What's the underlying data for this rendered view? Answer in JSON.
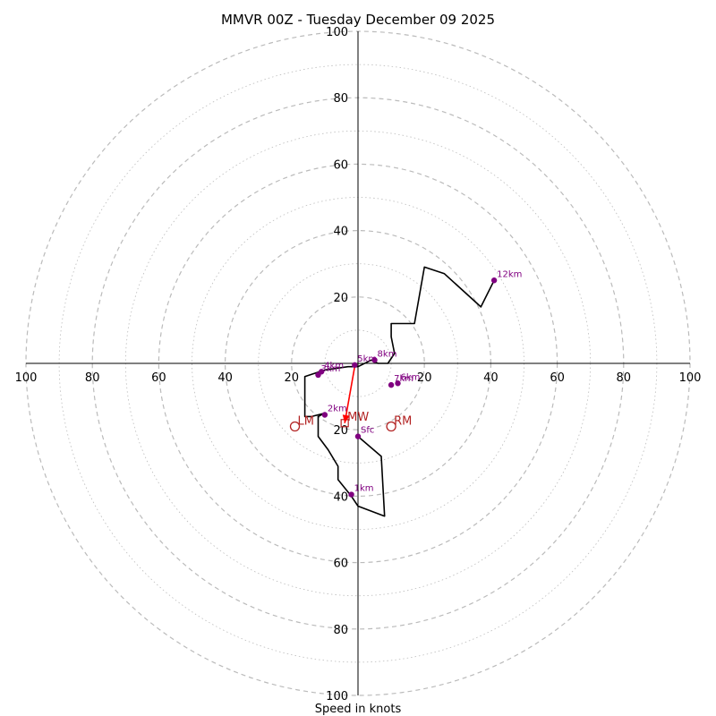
{
  "chart_data": {
    "type": "hodograph",
    "title": "MMVR 00Z - Tuesday December 09 2025",
    "xlabel": "Speed in knots",
    "range": [
      -100,
      100
    ],
    "ring_major_step": 20,
    "ring_minor_step": 10,
    "tick_values": [
      20,
      40,
      60,
      80,
      100
    ],
    "colors": {
      "grid": "#bbbbbb",
      "trace": "#000000",
      "height_marker": "#800080",
      "motion": "#b22222",
      "shear_vector": "#ff0000"
    },
    "trace": [
      [
        0,
        -22
      ],
      [
        7,
        -28
      ],
      [
        8,
        -46
      ],
      [
        0,
        -43
      ],
      [
        -2,
        -40
      ],
      [
        -6,
        -35
      ],
      [
        -6,
        -31
      ],
      [
        -9,
        -26
      ],
      [
        -12,
        -22
      ],
      [
        -12,
        -16
      ],
      [
        -10,
        -15
      ],
      [
        -14,
        -16
      ],
      [
        -16,
        -16
      ],
      [
        -16,
        -12
      ],
      [
        -16,
        -4
      ],
      [
        -10,
        -2
      ],
      [
        -3,
        -1
      ],
      [
        0,
        -1
      ],
      [
        4,
        1
      ],
      [
        6,
        0
      ],
      [
        9,
        0
      ],
      [
        11,
        3
      ],
      [
        10,
        8
      ],
      [
        10,
        12
      ],
      [
        12,
        12
      ],
      [
        14,
        12
      ],
      [
        17,
        12
      ],
      [
        20,
        29
      ],
      [
        26,
        27
      ],
      [
        37,
        17
      ],
      [
        41,
        25
      ]
    ],
    "height_markers": [
      {
        "label": "Sfc",
        "u": 0,
        "v": -22
      },
      {
        "label": "1km",
        "u": -2,
        "v": -39.5
      },
      {
        "label": "2km",
        "u": -10,
        "v": -15.5
      },
      {
        "label": "3km",
        "u": -12,
        "v": -3.5
      },
      {
        "label": "4km",
        "u": -11,
        "v": -2.5
      },
      {
        "label": "5km",
        "u": -1,
        "v": -0.5
      },
      {
        "label": "6km",
        "u": 12,
        "v": -6
      },
      {
        "label": "7km",
        "u": 10,
        "v": -6.5
      },
      {
        "label": "8km",
        "u": 5,
        "v": 1
      },
      {
        "label": "12km",
        "u": 41,
        "v": 25
      }
    ],
    "storm_motion": [
      {
        "label": "LM",
        "u": -19,
        "v": -19
      },
      {
        "label": "RM",
        "u": 10,
        "v": -19
      }
    ],
    "mean_wind": {
      "label": "MW",
      "u": -4,
      "v": -18
    },
    "shear_vector": {
      "from": [
        -4,
        -18
      ],
      "to": [
        -1,
        -1
      ]
    }
  }
}
